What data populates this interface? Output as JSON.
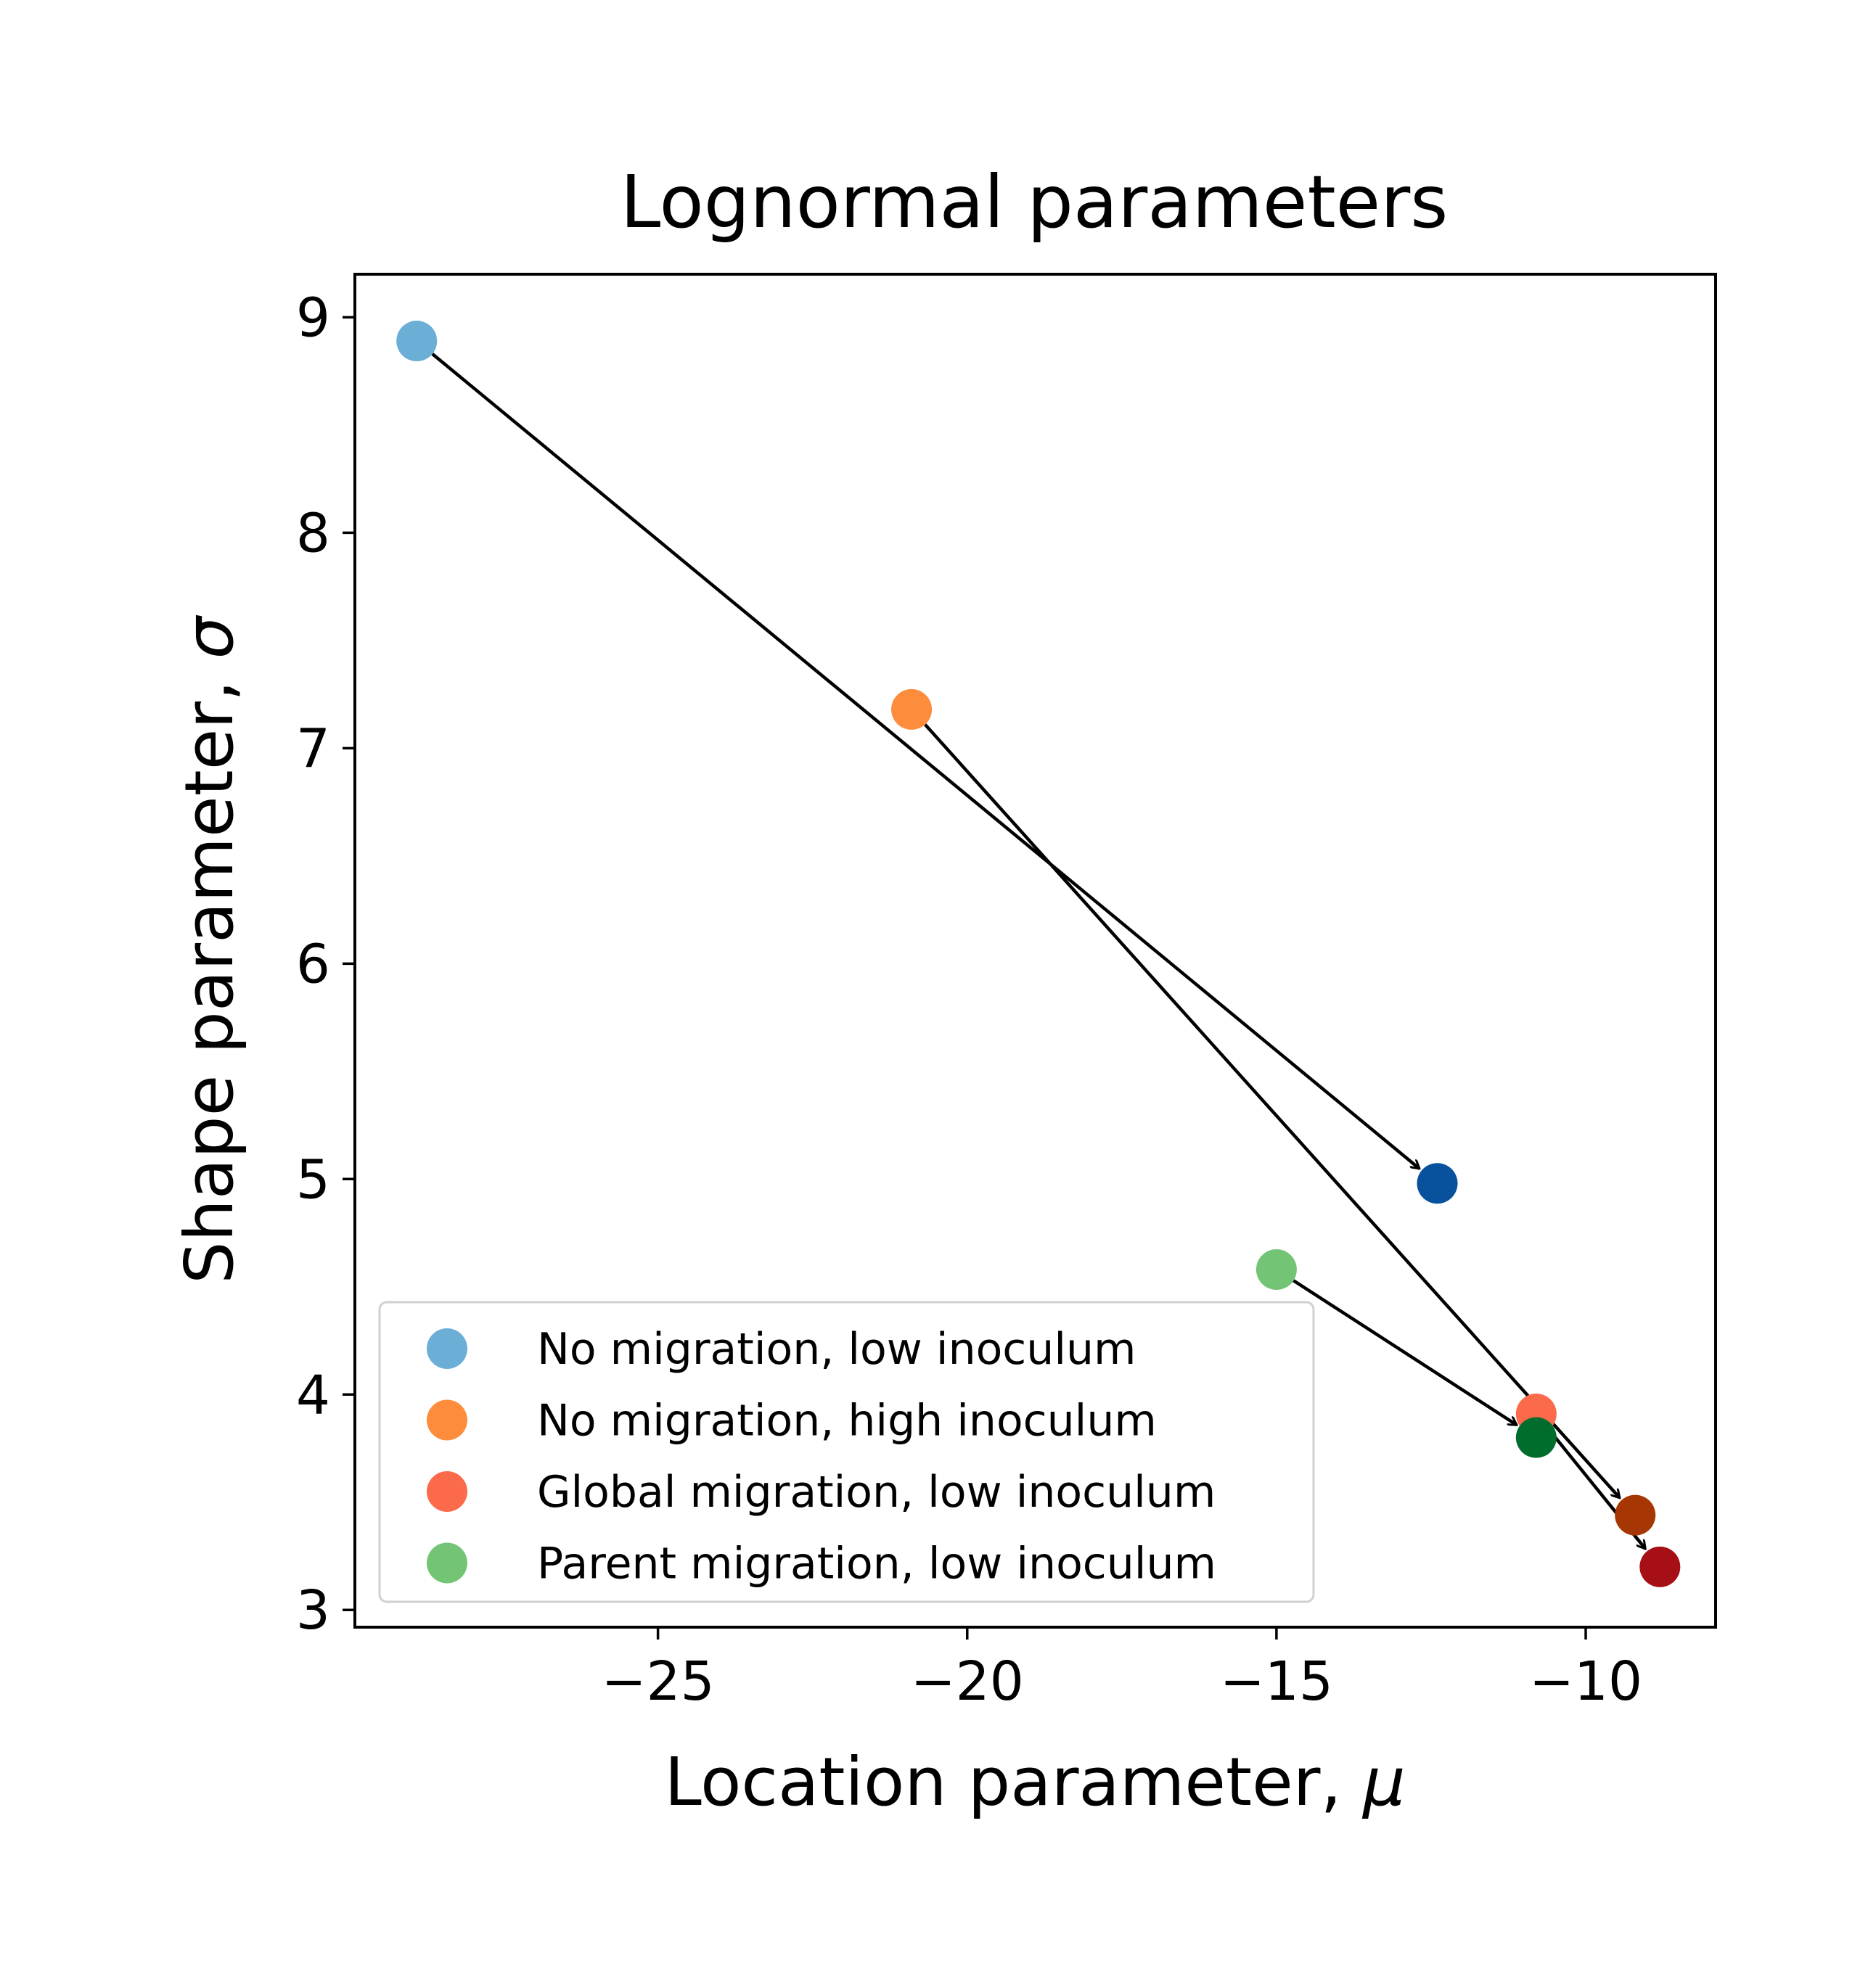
{
  "chart_data": {
    "type": "scatter",
    "title": "Lognormal parameters",
    "xlabel": "Location parameter, ",
    "xlabel_symbol": "μ",
    "ylabel": "Shape parameter, ",
    "ylabel_symbol": "σ",
    "xlim": [
      -29.9,
      -7.9
    ],
    "ylim": [
      2.92,
      9.2
    ],
    "xticks": [
      {
        "value": -25,
        "label": "−25"
      },
      {
        "value": -20,
        "label": "−20"
      },
      {
        "value": -15,
        "label": "−15"
      },
      {
        "value": -10,
        "label": "−10"
      }
    ],
    "yticks": [
      {
        "value": 3,
        "label": "3"
      },
      {
        "value": 4,
        "label": "4"
      },
      {
        "value": 5,
        "label": "5"
      },
      {
        "value": 6,
        "label": "6"
      },
      {
        "value": 7,
        "label": "7"
      },
      {
        "value": 8,
        "label": "8"
      },
      {
        "value": 9,
        "label": "9"
      }
    ],
    "grid": false,
    "legend_position": "lower-left",
    "series": [
      {
        "name": "No migration, low inoculum",
        "color": "#6baed6",
        "start": {
          "x": -28.9,
          "y": 8.89
        },
        "end": {
          "x": -12.4,
          "y": 4.98
        },
        "end_color": "#08519c"
      },
      {
        "name": "No migration, high inoculum",
        "color": "#fd8d3c",
        "start": {
          "x": -20.9,
          "y": 7.18
        },
        "end": {
          "x": -9.2,
          "y": 3.44
        },
        "end_color": "#a63603"
      },
      {
        "name": "Global migration, low inoculum",
        "color": "#fb6a4a",
        "start": {
          "x": -10.8,
          "y": 3.91
        },
        "end": {
          "x": -8.8,
          "y": 3.2
        },
        "end_color": "#a50f15"
      },
      {
        "name": "Parent migration, low inoculum",
        "color": "#74c476",
        "start": {
          "x": -15.0,
          "y": 4.58
        },
        "end": {
          "x": -10.8,
          "y": 3.8
        },
        "end_color": "#006d2c"
      }
    ]
  }
}
